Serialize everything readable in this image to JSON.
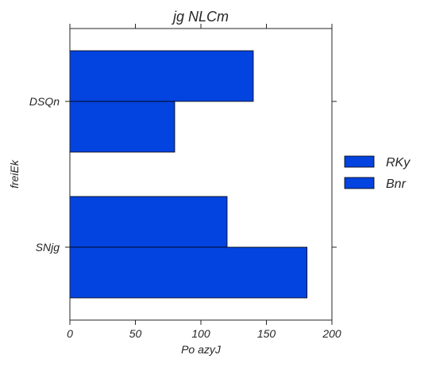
{
  "chart_data": {
    "type": "bar",
    "orientation": "horizontal",
    "title": "jg NLCm",
    "xlabel": "Po azyJ",
    "ylabel": "freiEk",
    "categories": [
      "DSQn",
      "SNjg"
    ],
    "series": [
      {
        "name": "RKy",
        "values": [
          140,
          120
        ],
        "color": "#0343df"
      },
      {
        "name": "Bnr",
        "values": [
          80,
          181
        ],
        "color": "#0343df"
      }
    ],
    "xlim": [
      0,
      200
    ],
    "xticks": [
      "0",
      "50",
      "100",
      "150",
      "200"
    ],
    "grid": false,
    "legend_position": "right"
  }
}
